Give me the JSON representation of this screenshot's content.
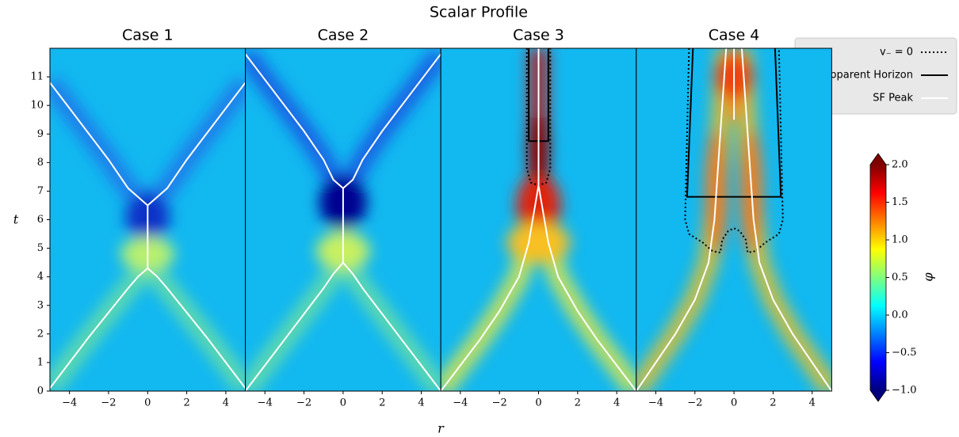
{
  "chart_data": {
    "type": "heatmap",
    "title": "Scalar Profile",
    "xlabel": "r",
    "ylabel": "t",
    "xlim": [
      -5,
      5
    ],
    "ylim": [
      0,
      12
    ],
    "xticks": [
      {
        "value": -4,
        "label": "−4"
      },
      {
        "value": -2,
        "label": "−2"
      },
      0,
      2,
      4
    ],
    "yticks": [
      0,
      1,
      2,
      3,
      4,
      5,
      6,
      7,
      8,
      9,
      10,
      11
    ],
    "colorbar": {
      "label": "φ",
      "cmap": "jet",
      "lim": [
        -1,
        2
      ],
      "ticks": [
        {
          "value": 2,
          "label": "2.0"
        },
        {
          "value": 1.5,
          "label": "1.5"
        },
        {
          "value": 1,
          "label": "1.0"
        },
        {
          "value": 0.5,
          "label": "0.5"
        },
        {
          "value": 0,
          "label": "0.0"
        },
        {
          "value": -0.5,
          "label": "−0.5"
        },
        {
          "value": -1,
          "label": "−1.0"
        }
      ]
    },
    "legend": {
      "position": "upper right",
      "entries": [
        {
          "name": "v₋ = 0",
          "color": "#000000",
          "linestyle": "dotted"
        },
        {
          "name": "Apparent Horizon",
          "color": "#000000",
          "linestyle": "solid"
        },
        {
          "name": "SF Peak",
          "color": "#ffffff",
          "linestyle": "solid"
        }
      ]
    },
    "panels": [
      {
        "title": "Case 1",
        "sf_peak": [
          {
            "r": [
              -5,
              -4,
              -3,
              -2,
              -1,
              -0.5,
              0,
              0.5,
              1,
              2,
              3,
              4,
              5
            ],
            "t": [
              0.1,
              1.0,
              1.9,
              2.75,
              3.6,
              4.0,
              4.3,
              4.0,
              3.6,
              2.75,
              1.9,
              1.0,
              0.1
            ]
          },
          {
            "r": [
              0,
              0
            ],
            "t": [
              4.3,
              6.5
            ]
          },
          {
            "r": [
              -5,
              -4,
              -3,
              -2,
              -1,
              -0.5,
              0,
              0.5,
              1,
              2,
              3,
              4,
              5
            ],
            "t": [
              10.8,
              9.9,
              9.0,
              8.1,
              7.1,
              6.8,
              6.5,
              6.8,
              7.1,
              8.1,
              9.0,
              9.9,
              10.8
            ]
          }
        ],
        "horizon": [],
        "v_minus": []
      },
      {
        "title": "Case 2",
        "sf_peak": [
          {
            "r": [
              -5,
              -4,
              -3,
              -2,
              -1,
              -0.5,
              0,
              0.5,
              1,
              2,
              3,
              4,
              5
            ],
            "t": [
              0,
              0.9,
              1.8,
              2.7,
              3.6,
              4.1,
              4.5,
              4.1,
              3.6,
              2.7,
              1.8,
              0.9,
              0
            ]
          },
          {
            "r": [
              0,
              0
            ],
            "t": [
              4.5,
              7.1
            ]
          },
          {
            "r": [
              -5,
              -4,
              -3,
              -2,
              -1,
              -0.5,
              0,
              0.5,
              1,
              2,
              3,
              4,
              5
            ],
            "t": [
              11.8,
              10.9,
              10.0,
              9.1,
              8.1,
              7.4,
              7.1,
              7.4,
              8.1,
              9.1,
              10.0,
              10.9,
              11.8
            ]
          }
        ],
        "horizon": [],
        "v_minus": []
      },
      {
        "title": "Case 3",
        "sf_peak": [
          {
            "r": [
              -5,
              -4,
              -3,
              -2,
              -1,
              -0.5,
              0
            ],
            "t": [
              0,
              0.9,
              1.8,
              2.8,
              4.0,
              5.2,
              7.2
            ]
          },
          {
            "r": [
              5,
              4,
              3,
              2,
              1,
              0.5,
              0
            ],
            "t": [
              0,
              0.9,
              1.8,
              2.8,
              4.0,
              5.2,
              7.2
            ]
          },
          {
            "r": [
              0,
              0
            ],
            "t": [
              7.2,
              12
            ]
          }
        ],
        "horizon": [
          {
            "r": [
              -0.5,
              -0.5,
              0.5,
              0.5
            ],
            "t": [
              12,
              8.75,
              8.75,
              12
            ]
          }
        ],
        "v_minus": [
          {
            "r": [
              -0.6,
              -0.6,
              -0.4,
              0,
              0.4,
              0.6,
              0.6
            ],
            "t": [
              12,
              7.8,
              7.3,
              7.2,
              7.3,
              7.8,
              12
            ]
          }
        ]
      },
      {
        "title": "Case 4",
        "sf_peak": [
          {
            "r": [
              -5,
              -4,
              -3,
              -2,
              -1.3,
              -1.0,
              -0.8,
              -0.6,
              -0.4
            ],
            "t": [
              0,
              1,
              2,
              3.2,
              4.5,
              6,
              8,
              10,
              12
            ]
          },
          {
            "r": [
              5,
              4,
              3,
              2,
              1.3,
              1.0,
              0.8,
              0.6,
              0.4
            ],
            "t": [
              0,
              1,
              2,
              3.2,
              4.5,
              6,
              8,
              10,
              12
            ]
          },
          {
            "r": [
              0,
              0
            ],
            "t": [
              9.5,
              12
            ]
          }
        ],
        "horizon": [
          {
            "r": [
              -2.1,
              -2.4,
              2.4,
              2.1
            ],
            "t": [
              12,
              6.8,
              6.8,
              12
            ]
          }
        ],
        "v_minus": [
          {
            "r": [
              -2.3,
              -2.5,
              -2.3,
              -1.6,
              -1.1,
              -0.7,
              -0.6,
              -0.3,
              0,
              0.3,
              0.6,
              0.7,
              1.1,
              1.6,
              2.3,
              2.5,
              2.3
            ],
            "t": [
              12,
              6,
              5.5,
              5.2,
              4.9,
              4.85,
              5.3,
              5.6,
              5.7,
              5.6,
              5.3,
              4.85,
              4.9,
              5.2,
              5.5,
              6,
              12
            ]
          }
        ]
      }
    ]
  }
}
